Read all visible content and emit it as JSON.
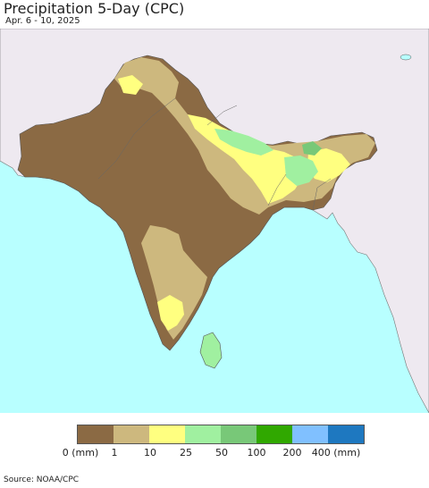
{
  "title": "Precipitation 5-Day (CPC)",
  "subtitle": "Apr. 6 - 10, 2025",
  "legend": {
    "colors": [
      "#8B6A44",
      "#CDB87E",
      "#FFFF80",
      "#A0F0A0",
      "#78C878",
      "#30A800",
      "#80C0FF",
      "#1E78C0"
    ],
    "labels": [
      "0 (mm)",
      "1",
      "10",
      "25",
      "50",
      "100",
      "200",
      "400 (mm)"
    ]
  },
  "map": {
    "ocean_color": "#B8FFFF",
    "outside_land_color": "#EEE9F0",
    "lakes_color": "#B8FFFF"
  },
  "source": "Source: NOAA/CPC"
}
